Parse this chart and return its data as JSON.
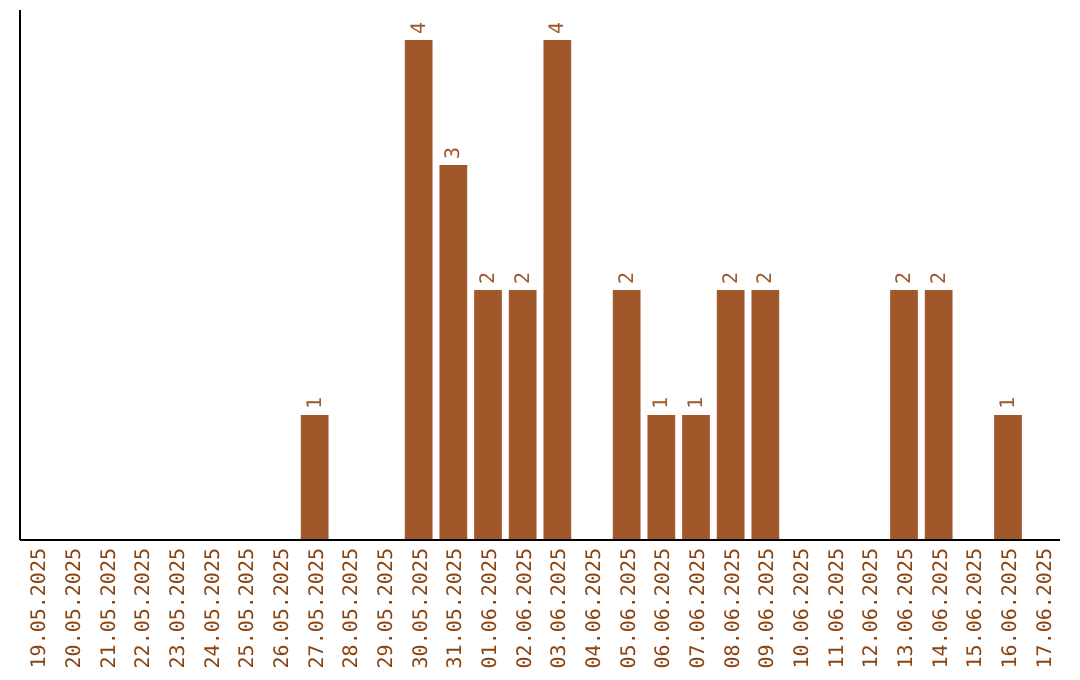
{
  "chart_data": {
    "type": "bar",
    "categories": [
      "19.05.2025",
      "20.05.2025",
      "21.05.2025",
      "22.05.2025",
      "23.05.2025",
      "24.05.2025",
      "25.05.2025",
      "26.05.2025",
      "27.05.2025",
      "28.05.2025",
      "29.05.2025",
      "30.05.2025",
      "31.05.2025",
      "01.06.2025",
      "02.06.2025",
      "03.06.2025",
      "04.06.2025",
      "05.06.2025",
      "06.06.2025",
      "07.06.2025",
      "08.06.2025",
      "09.06.2025",
      "10.06.2025",
      "11.06.2025",
      "12.06.2025",
      "13.06.2025",
      "14.06.2025",
      "15.06.2025",
      "16.06.2025",
      "17.06.2025"
    ],
    "values": [
      0,
      0,
      0,
      0,
      0,
      0,
      0,
      0,
      1,
      0,
      0,
      4,
      3,
      2,
      2,
      4,
      0,
      2,
      1,
      1,
      2,
      2,
      0,
      0,
      0,
      2,
      2,
      0,
      1,
      0
    ],
    "value_labels": [
      null,
      null,
      null,
      null,
      null,
      null,
      null,
      null,
      "1",
      null,
      null,
      "4",
      "3",
      "2",
      "2",
      "4",
      null,
      "2",
      "1",
      "1",
      "2",
      "2",
      null,
      null,
      null,
      "2",
      "2",
      null,
      "1",
      null
    ],
    "color": "#a0582a",
    "ylim": [
      0,
      4
    ],
    "tick_labels": "x"
  }
}
